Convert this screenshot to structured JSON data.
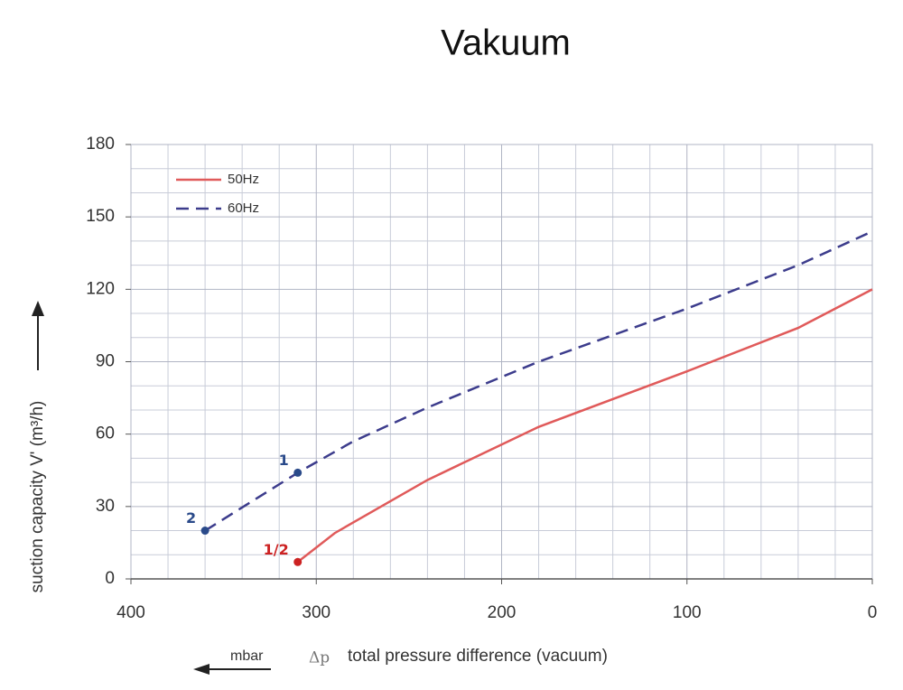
{
  "chart_data": {
    "type": "line",
    "title": "Vakuum",
    "xlabel": "total pressure difference (vacuum)",
    "xsymbol": "Δp",
    "xunit": "mbar",
    "ylabel": "suction capacity V' (m³/h)",
    "xlim": [
      400,
      0
    ],
    "xticks": [
      400,
      300,
      200,
      100,
      0
    ],
    "ylim": [
      0,
      180
    ],
    "yticks": [
      0,
      30,
      60,
      90,
      120,
      150,
      180
    ],
    "grid": true,
    "legend": "upper left",
    "series": [
      {
        "name": "50Hz",
        "color": "#e05a5a",
        "dash": false,
        "x": [
          310,
          290,
          240,
          180,
          100,
          40,
          0
        ],
        "values": [
          7,
          19,
          41,
          63,
          86,
          104,
          120
        ]
      },
      {
        "name": "60Hz",
        "color": "#3c3c8c",
        "dash": true,
        "x": [
          360,
          310,
          280,
          240,
          180,
          100,
          40,
          0
        ],
        "values": [
          20,
          44,
          57,
          71,
          90,
          112,
          130,
          144
        ]
      }
    ],
    "annotations": [
      {
        "text": "1",
        "x": 310,
        "y": 44,
        "color": "#2a4a8a"
      },
      {
        "text": "2",
        "x": 360,
        "y": 20,
        "color": "#2a4a8a"
      },
      {
        "text": "1/2",
        "x": 310,
        "y": 7,
        "color": "#cc2222"
      }
    ]
  }
}
